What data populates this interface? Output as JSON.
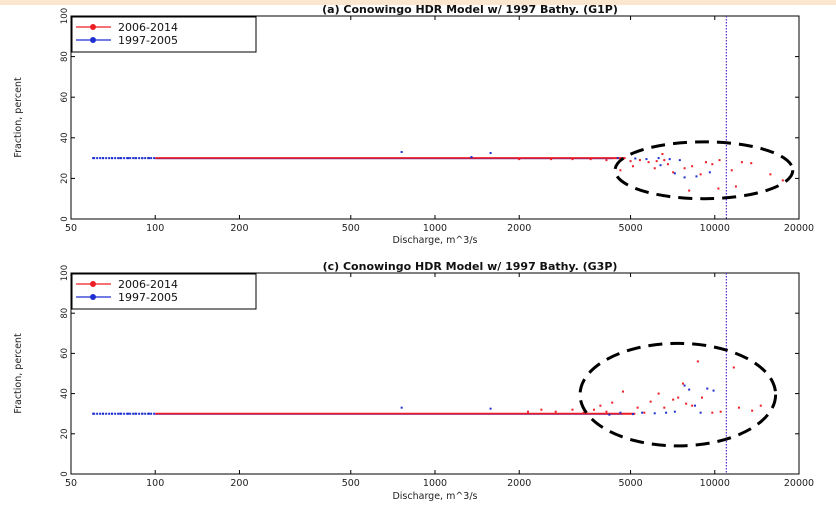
{
  "colors": {
    "series_2006_2014": "#ee1c24",
    "series_1997_2005": "#1f2fd0",
    "axis": "#000000",
    "circle": "#000000",
    "vline": "#5a2ad0"
  },
  "chart_data": [
    {
      "type": "scatter",
      "title": "(a) Conowingo HDR Model w/ 1997 Bathy.  (G1P)",
      "xlabel": "Discharge, m^3/s",
      "ylabel": "Fraction, percent",
      "xscale": "log",
      "xlim": [
        50,
        20000
      ],
      "ylim": [
        0,
        100
      ],
      "xticks": [
        50,
        100,
        200,
        500,
        1000,
        2000,
        5000,
        10000,
        20000
      ],
      "xtick_labels": [
        "50",
        "100",
        "200",
        "500",
        "1000",
        "2000",
        "5000",
        "10000",
        "20000"
      ],
      "yticks": [
        0,
        20,
        40,
        60,
        80,
        100
      ],
      "ytick_labels": [
        "0",
        "20",
        "40",
        "60",
        "80",
        "100"
      ],
      "grid": false,
      "legend_position": "top-left",
      "vertical_line_x": 11000,
      "dense_band": {
        "y": 30,
        "red_x": [
          100,
          4800
        ],
        "blue_x": [
          60,
          100
        ]
      },
      "annotation": {
        "type": "dashed-ellipse",
        "center": [
          8800,
          23
        ],
        "x_range": [
          4400,
          19000
        ],
        "y_range": [
          10,
          38
        ]
      },
      "series": [
        {
          "name": "2006-2014",
          "color": "red",
          "points": [
            [
              2000,
              29.5
            ],
            [
              2600,
              29.5
            ],
            [
              3100,
              29.5
            ],
            [
              3600,
              29.5
            ],
            [
              4100,
              29
            ],
            [
              4600,
              29
            ],
            [
              5000,
              28.5
            ],
            [
              5400,
              29
            ],
            [
              5800,
              28
            ],
            [
              6200,
              28.5
            ],
            [
              6600,
              29
            ],
            [
              4600,
              24
            ],
            [
              5100,
              26
            ],
            [
              6100,
              25
            ],
            [
              6800,
              27
            ],
            [
              7100,
              23
            ],
            [
              7800,
              25
            ],
            [
              8300,
              26
            ],
            [
              8900,
              22
            ],
            [
              9300,
              28
            ],
            [
              9800,
              27
            ],
            [
              10400,
              29
            ],
            [
              11500,
              24
            ],
            [
              12500,
              28
            ],
            [
              13500,
              27.5
            ],
            [
              15800,
              22
            ],
            [
              17500,
              19
            ],
            [
              8100,
              14
            ],
            [
              10300,
              15
            ],
            [
              11900,
              16
            ],
            [
              6500,
              32
            ]
          ]
        },
        {
          "name": "1997-2005",
          "color": "blue",
          "points": [
            [
              60,
              30
            ],
            [
              65,
              30
            ],
            [
              70,
              30
            ],
            [
              75,
              30
            ],
            [
              80,
              30
            ],
            [
              85,
              30
            ],
            [
              90,
              30
            ],
            [
              95,
              30
            ],
            [
              760,
              33
            ],
            [
              1580,
              32.5
            ],
            [
              1350,
              30.5
            ],
            [
              4500,
              30
            ],
            [
              5200,
              29.8
            ],
            [
              5700,
              29.5
            ],
            [
              6300,
              30
            ],
            [
              6900,
              29.5
            ],
            [
              7500,
              29
            ],
            [
              6400,
              26.5
            ],
            [
              7200,
              22.5
            ],
            [
              7800,
              20.5
            ],
            [
              8600,
              21
            ],
            [
              9600,
              23
            ]
          ]
        }
      ]
    },
    {
      "type": "scatter",
      "title": "(c) Conowingo HDR Model w/ 1997 Bathy.  (G3P)",
      "xlabel": "Discharge, m^3/s",
      "ylabel": "Fraction, percent",
      "xscale": "log",
      "xlim": [
        50,
        20000
      ],
      "ylim": [
        0,
        100
      ],
      "xticks": [
        50,
        100,
        200,
        500,
        1000,
        2000,
        5000,
        10000,
        20000
      ],
      "xtick_labels": [
        "50",
        "100",
        "200",
        "500",
        "1000",
        "2000",
        "5000",
        "10000",
        "20000"
      ],
      "yticks": [
        0,
        20,
        40,
        60,
        80,
        100
      ],
      "ytick_labels": [
        "0",
        "20",
        "40",
        "60",
        "80",
        "100"
      ],
      "grid": false,
      "legend_position": "top-left",
      "vertical_line_x": 11000,
      "dense_band": {
        "y": 30,
        "red_x": [
          100,
          5200
        ],
        "blue_x": [
          60,
          100
        ]
      },
      "annotation": {
        "type": "dashed-ellipse",
        "center": [
          7400,
          40
        ],
        "x_range": [
          3300,
          16500
        ],
        "y_range": [
          14,
          65
        ]
      },
      "series": [
        {
          "name": "2006-2014",
          "color": "red",
          "points": [
            [
              2150,
              31
            ],
            [
              2400,
              32
            ],
            [
              2700,
              31
            ],
            [
              3100,
              32
            ],
            [
              3400,
              30.5
            ],
            [
              3700,
              32
            ],
            [
              3900,
              34
            ],
            [
              4100,
              31
            ],
            [
              4300,
              35.5
            ],
            [
              4700,
              41
            ],
            [
              5300,
              33
            ],
            [
              5600,
              30.5
            ],
            [
              5900,
              36
            ],
            [
              6300,
              40
            ],
            [
              6600,
              33
            ],
            [
              7100,
              37
            ],
            [
              7400,
              38
            ],
            [
              7700,
              45
            ],
            [
              7900,
              35
            ],
            [
              8300,
              34
            ],
            [
              8700,
              56
            ],
            [
              9000,
              38
            ],
            [
              9800,
              30.5
            ],
            [
              10500,
              31
            ],
            [
              11700,
              53
            ],
            [
              12200,
              33
            ],
            [
              13600,
              31.5
            ],
            [
              14600,
              34
            ]
          ]
        },
        {
          "name": "1997-2005",
          "color": "blue",
          "points": [
            [
              60,
              30
            ],
            [
              65,
              30
            ],
            [
              70,
              30
            ],
            [
              75,
              30
            ],
            [
              80,
              30
            ],
            [
              85,
              30
            ],
            [
              90,
              30
            ],
            [
              95,
              30
            ],
            [
              760,
              33
            ],
            [
              1580,
              32.5
            ],
            [
              4200,
              29.5
            ],
            [
              4600,
              30.5
            ],
            [
              5100,
              29.8
            ],
            [
              5500,
              30.5
            ],
            [
              6100,
              30.2
            ],
            [
              6700,
              30.5
            ],
            [
              7200,
              31
            ],
            [
              7800,
              44
            ],
            [
              8100,
              42
            ],
            [
              8500,
              34
            ],
            [
              8900,
              30.5
            ],
            [
              9400,
              42.5
            ],
            [
              9900,
              41.5
            ]
          ]
        }
      ]
    }
  ]
}
